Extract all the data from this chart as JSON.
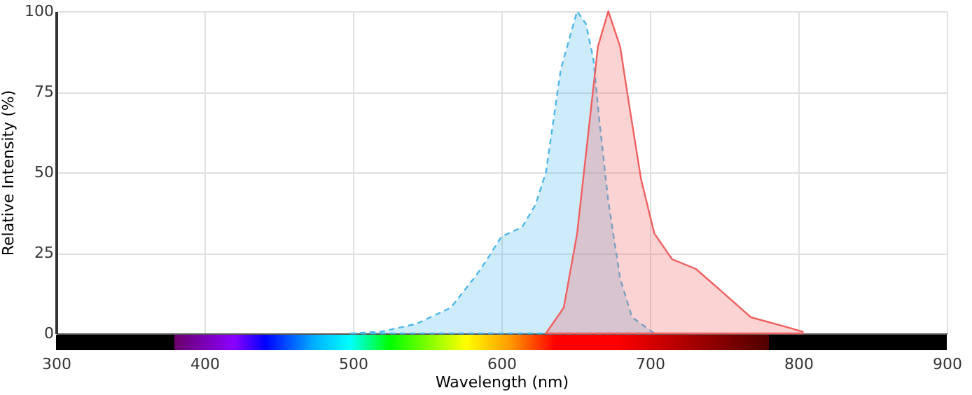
{
  "chart_data": {
    "type": "area",
    "xlabel": "Wavelength (nm)",
    "ylabel": "Relative Intensity (%)",
    "xlim": [
      300,
      900
    ],
    "xticks": [
      300,
      400,
      500,
      600,
      700,
      800,
      900
    ],
    "ylim": [
      0,
      100
    ],
    "yticks": [
      0,
      25,
      50,
      75,
      100
    ],
    "grid": true,
    "series": [
      {
        "color": "#4db8e8",
        "line_style": "dashed",
        "x": [
          498,
          519,
          543,
          566,
          583,
          589,
          600,
          614,
          623,
          630,
          640,
          651,
          657,
          662,
          666,
          672,
          680,
          688,
          703
        ],
        "values": [
          0,
          0.5,
          3,
          8,
          18,
          22,
          30,
          33,
          40,
          50,
          82,
          100,
          96,
          85,
          66,
          41,
          17,
          5,
          0
        ]
      },
      {
        "color": "#f06060",
        "line_style": "solid",
        "x": [
          630,
          642,
          651,
          658,
          665,
          672,
          680,
          685,
          694,
          703,
          715,
          731,
          746,
          768,
          792,
          803
        ],
        "values": [
          0,
          8,
          31,
          60,
          89,
          100,
          89,
          74,
          48,
          31,
          23,
          20,
          14,
          5,
          2,
          0.5
        ]
      }
    ]
  }
}
